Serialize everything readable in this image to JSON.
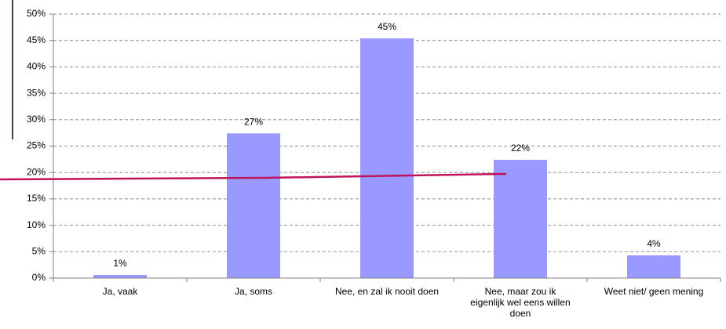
{
  "chart_data": {
    "type": "bar",
    "categories": [
      "Ja, vaak",
      "Ja, soms",
      "Nee, en zal ik nooit doen",
      "Nee, maar zou ik eigenlijk wel eens willen doen",
      "Weet niet/ geen mening"
    ],
    "values": [
      0.6,
      27.4,
      45.4,
      22.4,
      4.3
    ],
    "value_labels": [
      "1%",
      "27%",
      "45%",
      "22%",
      "4%"
    ],
    "color": "#9999ff",
    "ylim": [
      0,
      50
    ],
    "yticks": [
      {
        "value": 0,
        "label": "0%"
      },
      {
        "value": 5,
        "label": "5%"
      },
      {
        "value": 10,
        "label": "10%"
      },
      {
        "value": 15,
        "label": "15%"
      },
      {
        "value": 20,
        "label": "20%"
      },
      {
        "value": 25,
        "label": "25%"
      },
      {
        "value": 30,
        "label": "30%"
      },
      {
        "value": 35,
        "label": "35%"
      },
      {
        "value": 40,
        "label": "40%"
      },
      {
        "value": 45,
        "label": "45%"
      },
      {
        "value": 50,
        "label": "50%"
      }
    ],
    "grid": true
  }
}
